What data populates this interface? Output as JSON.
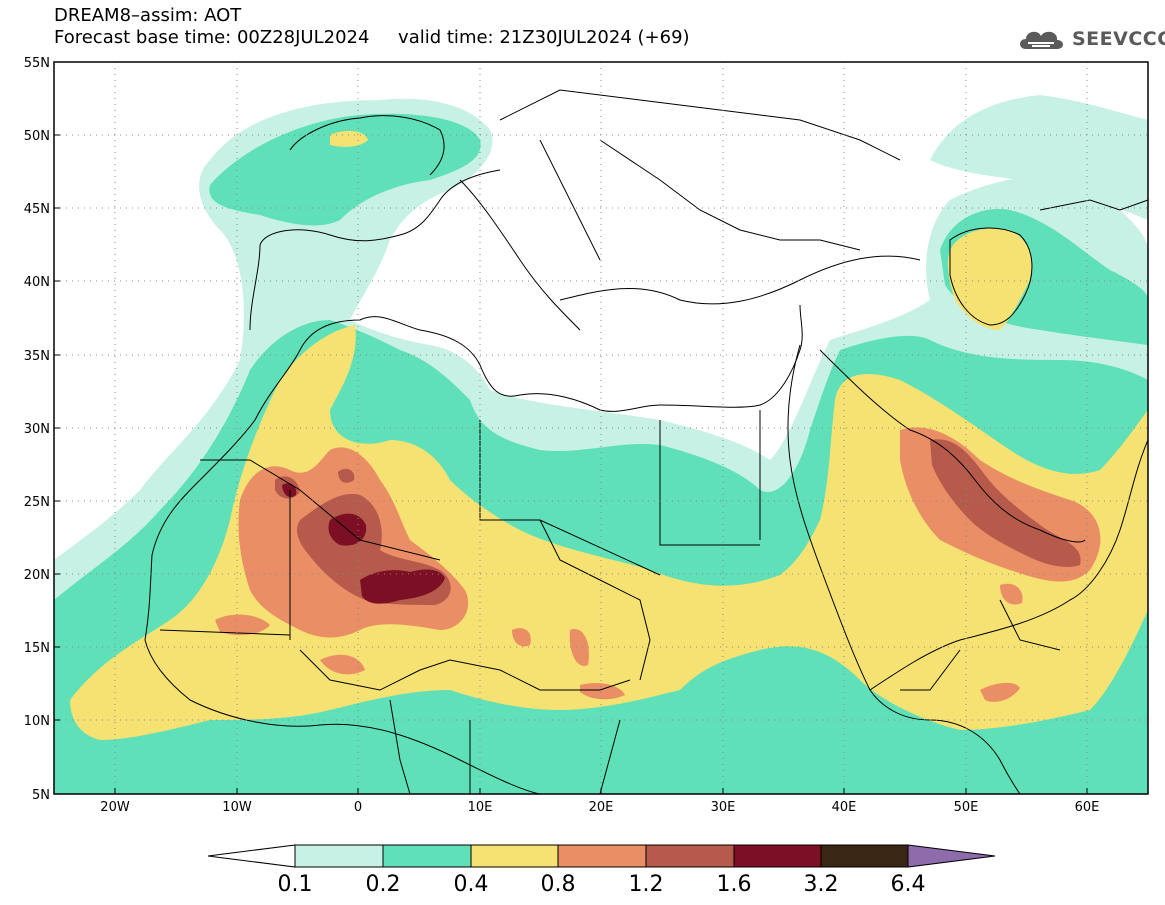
{
  "header": {
    "title": "DREAM8–assim: AOT",
    "base_time": "Forecast base time: 00Z28JUL2024",
    "valid_time": "valid time: 21Z30JUL2024 (+69)"
  },
  "logo": {
    "text": "SEEVCCC",
    "icon": "cloud-icon"
  },
  "map": {
    "lat_labels": [
      "55N",
      "50N",
      "45N",
      "40N",
      "35N",
      "30N",
      "25N",
      "20N",
      "15N",
      "10N",
      "5N"
    ],
    "lon_labels": [
      "20W",
      "10W",
      "0",
      "10E",
      "20E",
      "30E",
      "40E",
      "50E",
      "60E"
    ],
    "lat_range": [
      5,
      55
    ],
    "lon_range": [
      -25,
      65
    ],
    "grid": "dotted"
  },
  "colorbar": {
    "labels": [
      "0.1",
      "0.2",
      "0.4",
      "0.8",
      "1.2",
      "1.6",
      "3.2",
      "6.4"
    ],
    "colors": [
      "#c8f1e6",
      "#5fe0b8",
      "#f5e273",
      "#ea8e66",
      "#b65a4c",
      "#7d0f25",
      "#3a2615",
      "#8e6bab"
    ]
  }
}
